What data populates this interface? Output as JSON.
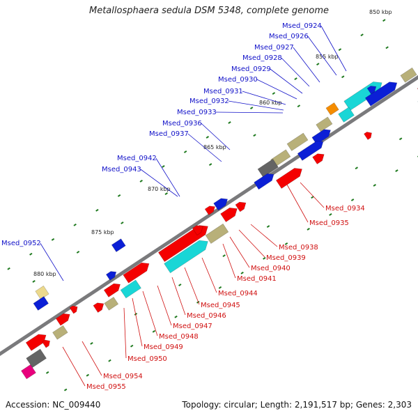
{
  "title": "Metallosphaera sedula DSM 5348, complete genome",
  "accession": "Accession: NC_009440",
  "summary": "Topology: circular; Length: 2,191,517 bp; Genes: 2,303",
  "colors": {
    "background": "#ffffff",
    "backbone": "#7a7a7c",
    "tick": "#1f7a1f",
    "upper_label": "#1010c8",
    "lower_label": "#d01010",
    "gene_blue": "#0b1fd6",
    "gene_red": "#f40000",
    "gene_cyan": "#19d6d6",
    "gene_khaki": "#b8b079",
    "gene_gray": "#646464",
    "gene_orange": "#f58c00",
    "gene_yellow": "#ecd98c",
    "gene_magenta": "#e8007c"
  },
  "kbp_markers": [
    "850 kbp",
    "855 kbp",
    "860 kbp",
    "865 kbp",
    "870 kbp",
    "875 kbp",
    "880 kbp"
  ],
  "gene_labels_upper": [
    "Msed_0924",
    "Msed_0926",
    "Msed_0927",
    "Msed_0928",
    "Msed_0929",
    "Msed_0930",
    "Msed_0931",
    "Msed_0932",
    "Msed_0933",
    "Msed_0936",
    "Msed_0937",
    "Msed_0942",
    "Msed_0943",
    "Msed_0952"
  ],
  "gene_labels_lower": [
    "Msed_0934",
    "Msed_0935",
    "Msed_0938",
    "Msed_0939",
    "Msed_0940",
    "Msed_0941",
    "Msed_0944",
    "Msed_0945",
    "Msed_0946",
    "Msed_0947",
    "Msed_0948",
    "Msed_0949",
    "Msed_0950",
    "Msed_0954",
    "Msed_0955"
  ]
}
